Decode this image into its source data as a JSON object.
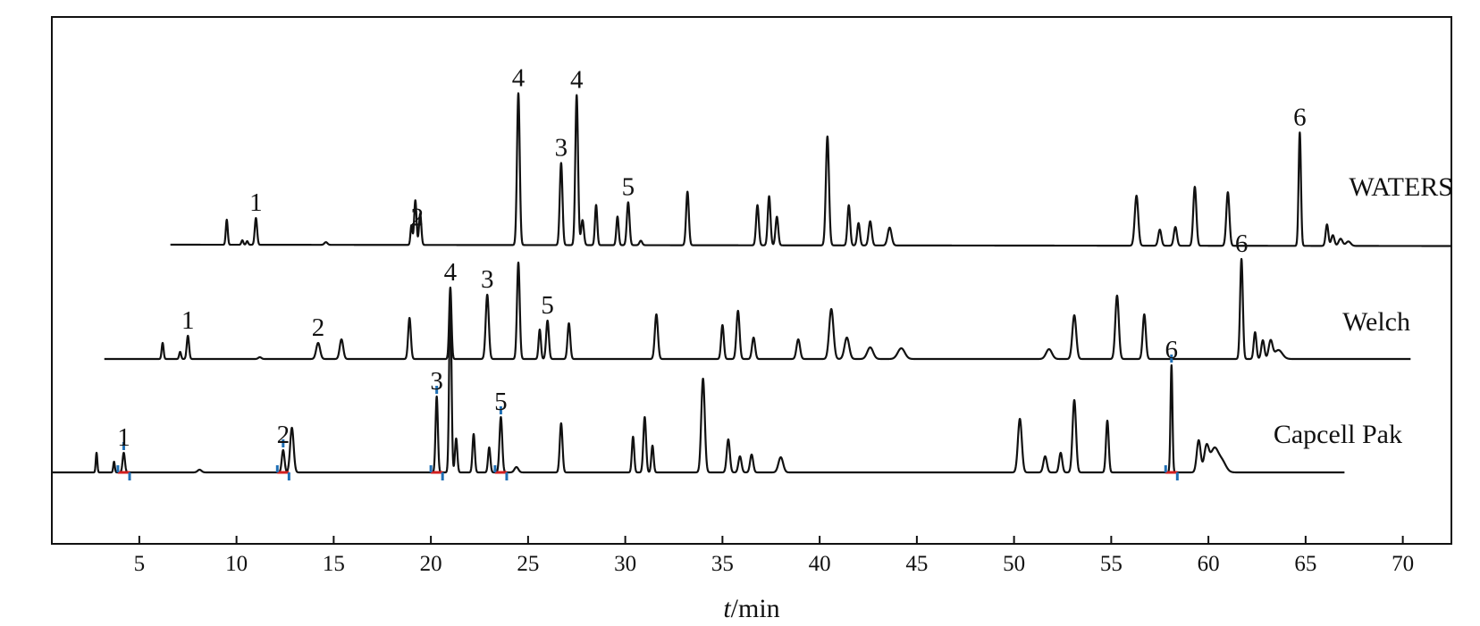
{
  "chart_data": {
    "type": "line",
    "title": "",
    "xlabel": "t/min",
    "xlabel_var": "t",
    "xlabel_unit": "/min",
    "ylabel": "",
    "xlim": [
      0.5,
      72.5
    ],
    "xticks": [
      5,
      10,
      15,
      20,
      25,
      30,
      35,
      40,
      45,
      50,
      55,
      60,
      65,
      70
    ],
    "grid": false,
    "legend": "none",
    "line_color": "#111111",
    "marker_blue": "#1f6fb5",
    "marker_red": "#d21f1f",
    "series": [
      {
        "name": "WATERS",
        "start": 6.6,
        "end": 72.5,
        "baseline_drift": -1.5,
        "peaks": [
          [
            9.5,
            28,
            0.05
          ],
          [
            10.3,
            5,
            0.05
          ],
          [
            10.55,
            4,
            0.05
          ],
          [
            11.0,
            30,
            0.06
          ],
          [
            14.6,
            3,
            0.08
          ],
          [
            19.0,
            22,
            0.05
          ],
          [
            19.2,
            50,
            0.06
          ],
          [
            19.45,
            35,
            0.06
          ],
          [
            24.5,
            170,
            0.07
          ],
          [
            26.7,
            92,
            0.07
          ],
          [
            27.5,
            168,
            0.07
          ],
          [
            27.8,
            28,
            0.07
          ],
          [
            28.5,
            45,
            0.06
          ],
          [
            29.6,
            32,
            0.06
          ],
          [
            30.15,
            48,
            0.07
          ],
          [
            30.8,
            5,
            0.07
          ],
          [
            33.2,
            60,
            0.07
          ],
          [
            36.8,
            45,
            0.07
          ],
          [
            37.4,
            55,
            0.07
          ],
          [
            37.8,
            32,
            0.07
          ],
          [
            40.4,
            122,
            0.08
          ],
          [
            41.5,
            45,
            0.07
          ],
          [
            42.0,
            25,
            0.07
          ],
          [
            42.6,
            27,
            0.08
          ],
          [
            43.6,
            20,
            0.1
          ],
          [
            56.3,
            56,
            0.09
          ],
          [
            57.5,
            18,
            0.08
          ],
          [
            58.3,
            21,
            0.08
          ],
          [
            59.3,
            66,
            0.08
          ],
          [
            61.0,
            60,
            0.08
          ],
          [
            64.7,
            127,
            0.06
          ],
          [
            66.1,
            24,
            0.07
          ],
          [
            66.4,
            12,
            0.08
          ],
          [
            66.8,
            8,
            0.1
          ],
          [
            67.2,
            5,
            0.12
          ]
        ],
        "peak_labels": [
          {
            "text": "1",
            "t": 11.0
          },
          {
            "text": "2",
            "t": 19.3
          },
          {
            "text": "4",
            "t": 24.5
          },
          {
            "text": "3",
            "t": 26.7
          },
          {
            "text": "4",
            "t": 27.5
          },
          {
            "text": "5",
            "t": 30.15
          },
          {
            "text": "6",
            "t": 64.7
          }
        ]
      },
      {
        "name": "Welch",
        "start": 3.2,
        "end": 70.4,
        "baseline_drift": 0,
        "peaks": [
          [
            6.2,
            18,
            0.05
          ],
          [
            7.1,
            8,
            0.05
          ],
          [
            7.5,
            26,
            0.06
          ],
          [
            11.2,
            2,
            0.08
          ],
          [
            14.2,
            18,
            0.1
          ],
          [
            15.4,
            22,
            0.09
          ],
          [
            18.9,
            46,
            0.07
          ],
          [
            21.0,
            80,
            0.06
          ],
          [
            22.9,
            72,
            0.08
          ],
          [
            24.5,
            108,
            0.07
          ],
          [
            25.6,
            33,
            0.06
          ],
          [
            26.0,
            43,
            0.07
          ],
          [
            27.1,
            40,
            0.07
          ],
          [
            31.6,
            50,
            0.08
          ],
          [
            35.0,
            38,
            0.07
          ],
          [
            35.8,
            54,
            0.08
          ],
          [
            36.6,
            24,
            0.08
          ],
          [
            38.9,
            22,
            0.09
          ],
          [
            40.6,
            56,
            0.11
          ],
          [
            41.4,
            24,
            0.12
          ],
          [
            42.6,
            13,
            0.15
          ],
          [
            44.2,
            12,
            0.18
          ],
          [
            51.8,
            11,
            0.15
          ],
          [
            53.1,
            49,
            0.1
          ],
          [
            55.3,
            71,
            0.09
          ],
          [
            56.7,
            50,
            0.08
          ],
          [
            61.7,
            112,
            0.07
          ],
          [
            62.4,
            30,
            0.07
          ],
          [
            62.8,
            21,
            0.08
          ],
          [
            63.2,
            20,
            0.1
          ],
          [
            63.6,
            10,
            0.2
          ]
        ],
        "peak_labels": [
          {
            "text": "1",
            "t": 7.5
          },
          {
            "text": "2",
            "t": 14.2
          },
          {
            "text": "4",
            "t": 21.0
          },
          {
            "text": "3",
            "t": 22.9
          },
          {
            "text": "5",
            "t": 26.0
          },
          {
            "text": "6",
            "t": 61.7
          }
        ]
      },
      {
        "name": "Capcell Pak",
        "start": 0.5,
        "end": 67.0,
        "baseline_drift": 0,
        "peaks": [
          [
            2.8,
            22,
            0.04
          ],
          [
            3.7,
            12,
            0.04
          ],
          [
            4.2,
            22,
            0.06
          ],
          [
            8.1,
            3,
            0.1
          ],
          [
            12.4,
            25,
            0.07
          ],
          [
            12.85,
            50,
            0.09
          ],
          [
            20.3,
            85,
            0.06
          ],
          [
            21.0,
            200,
            0.06
          ],
          [
            21.3,
            38,
            0.06
          ],
          [
            22.2,
            43,
            0.06
          ],
          [
            23.0,
            28,
            0.06
          ],
          [
            23.6,
            62,
            0.07
          ],
          [
            24.4,
            6,
            0.1
          ],
          [
            26.7,
            55,
            0.07
          ],
          [
            30.4,
            40,
            0.06
          ],
          [
            31.0,
            62,
            0.07
          ],
          [
            31.4,
            30,
            0.06
          ],
          [
            34.0,
            105,
            0.09
          ],
          [
            35.3,
            37,
            0.08
          ],
          [
            35.9,
            18,
            0.08
          ],
          [
            36.5,
            20,
            0.08
          ],
          [
            38.0,
            17,
            0.12
          ],
          [
            50.3,
            60,
            0.1
          ],
          [
            51.6,
            18,
            0.09
          ],
          [
            52.4,
            22,
            0.08
          ],
          [
            53.1,
            81,
            0.09
          ],
          [
            54.8,
            58,
            0.07
          ],
          [
            58.1,
            120,
            0.05
          ],
          [
            59.5,
            36,
            0.1
          ],
          [
            59.9,
            28,
            0.12
          ],
          [
            60.3,
            26,
            0.2
          ],
          [
            60.7,
            12,
            0.2
          ]
        ],
        "peak_labels": [
          {
            "text": "1",
            "t": 4.2
          },
          {
            "text": "2",
            "t": 12.4
          },
          {
            "text": "3",
            "t": 20.3
          },
          {
            "text": "5",
            "t": 23.6
          },
          {
            "text": "6",
            "t": 58.1
          }
        ]
      }
    ]
  }
}
